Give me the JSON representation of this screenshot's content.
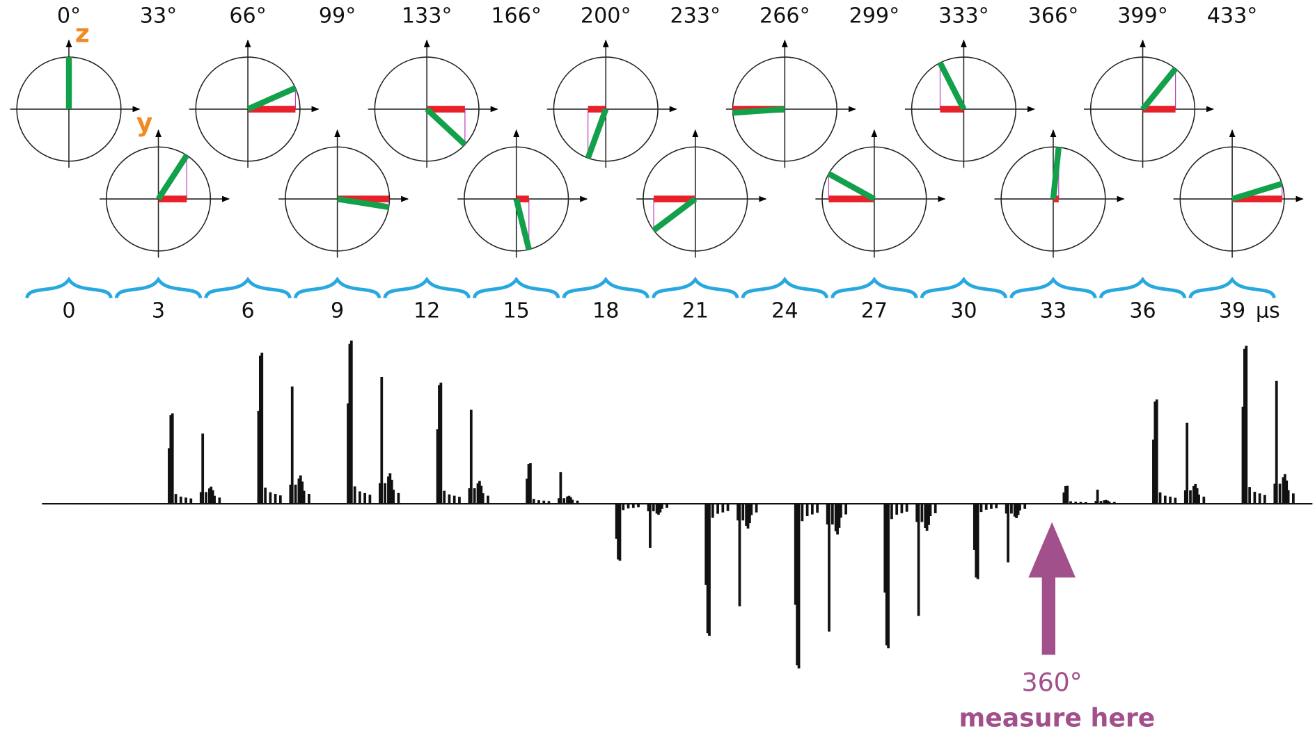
{
  "pulses": [
    {
      "angle": 0,
      "label": "0°"
    },
    {
      "angle": 33,
      "label": "33°"
    },
    {
      "angle": 66,
      "label": "66°"
    },
    {
      "angle": 99,
      "label": "99°"
    },
    {
      "angle": 133,
      "label": "133°"
    },
    {
      "angle": 166,
      "label": "166°"
    },
    {
      "angle": 200,
      "label": "200°"
    },
    {
      "angle": 233,
      "label": "233°"
    },
    {
      "angle": 266,
      "label": "266°"
    },
    {
      "angle": 299,
      "label": "299°"
    },
    {
      "angle": 333,
      "label": "333°"
    },
    {
      "angle": 366,
      "label": "366°"
    },
    {
      "angle": 399,
      "label": "399°"
    },
    {
      "angle": 433,
      "label": "433°"
    }
  ],
  "axis_labels": {
    "z": "z",
    "y": "y"
  },
  "time": {
    "ticks": [
      "0",
      "3",
      "6",
      "9",
      "12",
      "15",
      "18",
      "21",
      "24",
      "27",
      "30",
      "33",
      "36",
      "39"
    ],
    "unit": "μs"
  },
  "annotation": {
    "angle": "360°",
    "text": "measure here"
  }
}
